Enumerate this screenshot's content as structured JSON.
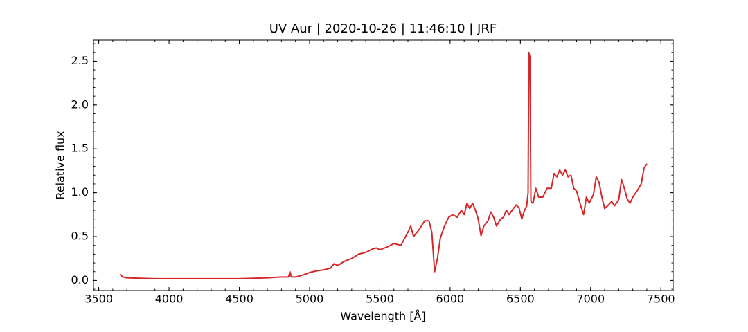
{
  "chart_data": {
    "type": "line",
    "title": "UV Aur | 2020-10-26 | 11:46:10 | JRF",
    "x_label": "Wavelength [Å]",
    "y_label": "Relative flux",
    "x": [
      3650,
      3670,
      3700,
      3800,
      3900,
      4000,
      4100,
      4200,
      4300,
      4400,
      4500,
      4600,
      4700,
      4800,
      4850,
      4861,
      4870,
      4900,
      4950,
      5000,
      5050,
      5100,
      5150,
      5175,
      5200,
      5250,
      5300,
      5350,
      5400,
      5450,
      5475,
      5500,
      5550,
      5600,
      5650,
      5700,
      5720,
      5740,
      5780,
      5820,
      5850,
      5870,
      5890,
      5910,
      5930,
      5960,
      5990,
      6020,
      6050,
      6080,
      6100,
      6120,
      6140,
      6160,
      6180,
      6200,
      6220,
      6240,
      6270,
      6290,
      6310,
      6330,
      6360,
      6380,
      6400,
      6420,
      6450,
      6470,
      6490,
      6510,
      6530,
      6545,
      6555,
      6560,
      6568,
      6575,
      6590,
      6610,
      6630,
      6660,
      6690,
      6720,
      6740,
      6760,
      6780,
      6800,
      6820,
      6840,
      6860,
      6880,
      6900,
      6930,
      6950,
      6970,
      6990,
      7020,
      7040,
      7060,
      7080,
      7100,
      7120,
      7150,
      7170,
      7200,
      7220,
      7240,
      7260,
      7280,
      7300,
      7330,
      7360,
      7380,
      7400
    ],
    "series": [
      {
        "name": "UV Aur",
        "color": "#d62728",
        "values": [
          0.07,
          0.04,
          0.03,
          0.025,
          0.02,
          0.02,
          0.02,
          0.02,
          0.02,
          0.02,
          0.02,
          0.025,
          0.03,
          0.04,
          0.04,
          0.1,
          0.04,
          0.04,
          0.06,
          0.09,
          0.11,
          0.12,
          0.14,
          0.19,
          0.17,
          0.22,
          0.25,
          0.3,
          0.32,
          0.36,
          0.37,
          0.35,
          0.38,
          0.42,
          0.4,
          0.55,
          0.62,
          0.5,
          0.58,
          0.68,
          0.68,
          0.55,
          0.1,
          0.25,
          0.48,
          0.62,
          0.72,
          0.75,
          0.72,
          0.8,
          0.75,
          0.88,
          0.82,
          0.88,
          0.8,
          0.7,
          0.51,
          0.62,
          0.68,
          0.78,
          0.72,
          0.62,
          0.7,
          0.72,
          0.8,
          0.75,
          0.82,
          0.86,
          0.83,
          0.7,
          0.8,
          0.85,
          1.0,
          2.6,
          2.55,
          0.9,
          0.88,
          1.05,
          0.95,
          0.95,
          1.05,
          1.05,
          1.22,
          1.18,
          1.26,
          1.2,
          1.26,
          1.18,
          1.2,
          1.05,
          1.02,
          0.85,
          0.75,
          0.95,
          0.88,
          0.98,
          1.18,
          1.12,
          0.95,
          0.82,
          0.85,
          0.9,
          0.85,
          0.92,
          1.15,
          1.05,
          0.93,
          0.88,
          0.95,
          1.02,
          1.1,
          1.28,
          1.33
        ]
      }
    ],
    "xlim": [
      3462.5,
      7587.5
    ],
    "ylim": [
      -0.115,
      2.74
    ],
    "xticks": [
      3500,
      4000,
      4500,
      5000,
      5500,
      6000,
      6500,
      7000,
      7500
    ],
    "yticks": [
      {
        "value": 0,
        "label": "0.0"
      },
      {
        "value": 0.5,
        "label": "0.5"
      },
      {
        "value": 1,
        "label": "1.0"
      },
      {
        "value": 1.5,
        "label": "1.5"
      },
      {
        "value": 2,
        "label": "2.0"
      },
      {
        "value": 2.5,
        "label": "2.5"
      }
    ],
    "grid": false
  }
}
